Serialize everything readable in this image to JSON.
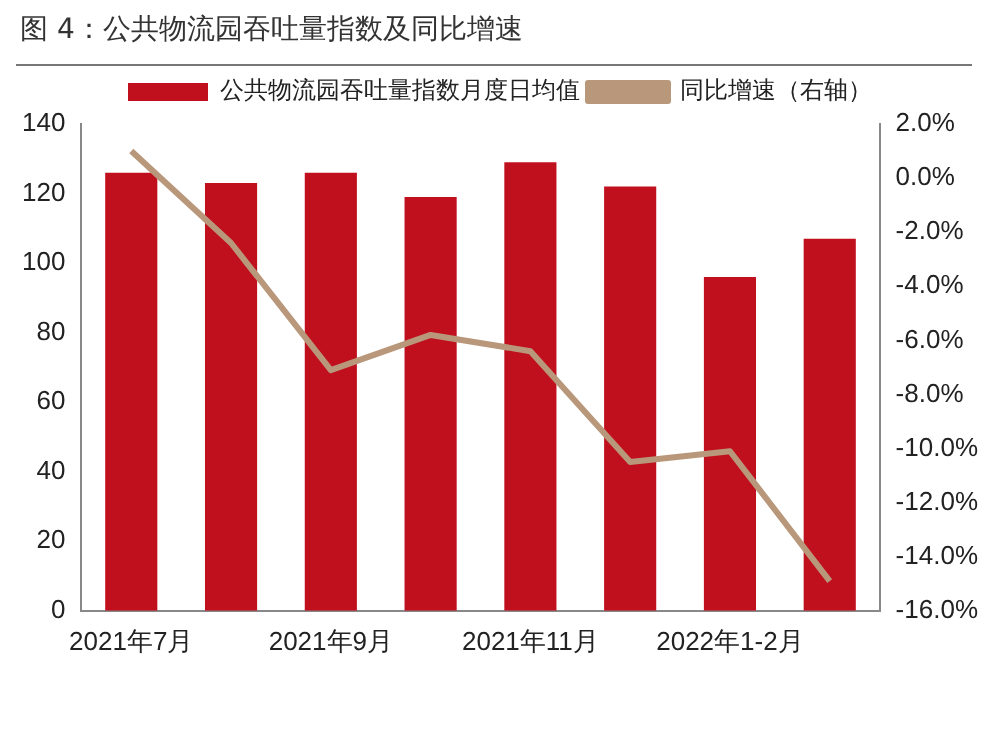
{
  "chart_data": {
    "type": "bar",
    "title": "图 4：公共物流园吞吐量指数及同比增速",
    "categories": [
      "2021年7月",
      null,
      "2021年9月",
      null,
      "2021年11月",
      null,
      "2022年1-2月",
      null
    ],
    "series": [
      {
        "name": "公共物流园吞吐量指数月度日均值",
        "color": "#c0101e",
        "values": [
          126,
          123,
          126,
          119,
          129,
          122,
          96,
          107
        ]
      },
      {
        "name": "同比增速（右轴）",
        "type": "line",
        "axis": "y2",
        "color": "#b8977a",
        "values": [
          1.0,
          -2.4,
          -7.1,
          -5.8,
          -6.4,
          -10.5,
          -10.1,
          -14.9
        ]
      }
    ],
    "ylim": [
      0,
      140
    ],
    "yticks": [
      0,
      20,
      40,
      60,
      80,
      100,
      120,
      140
    ],
    "y2lim": [
      -16,
      2
    ],
    "y2ticks": [
      {
        "value": -16,
        "label": "-16.0%"
      },
      {
        "value": -14,
        "label": "-14.0%"
      },
      {
        "value": -12,
        "label": "-12.0%"
      },
      {
        "value": -10,
        "label": "-10.0%"
      },
      {
        "value": -8,
        "label": "-8.0%"
      },
      {
        "value": -6,
        "label": "-6.0%"
      },
      {
        "value": -4,
        "label": "-4.0%"
      },
      {
        "value": -2,
        "label": "-2.0%"
      },
      {
        "value": 0,
        "label": "0.0%"
      },
      {
        "value": 2,
        "label": "2.0%"
      }
    ],
    "grid": false,
    "legend": "top",
    "marker": "none"
  }
}
